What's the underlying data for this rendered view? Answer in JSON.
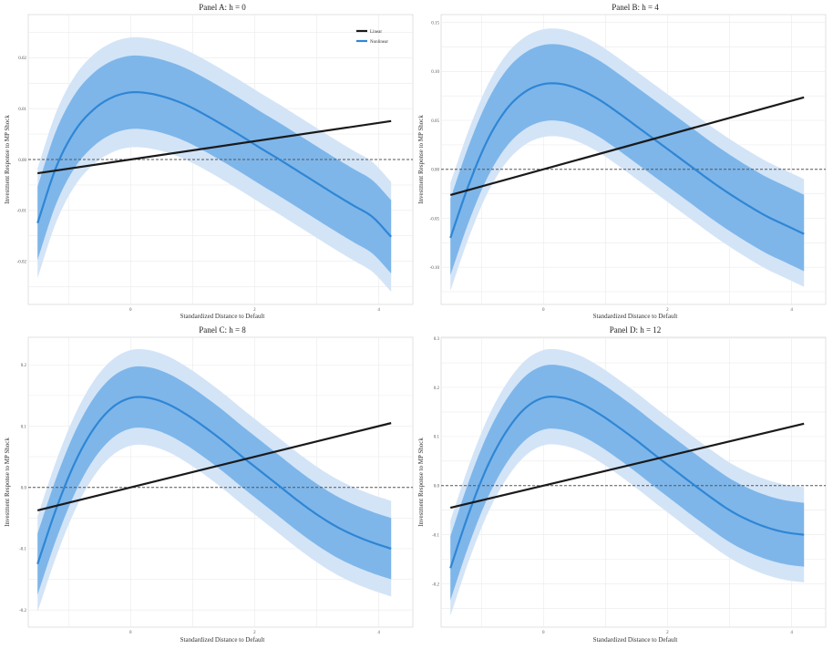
{
  "colors": {
    "outer_band": "#d3e4f7",
    "inner_band": "#7eb6ea",
    "nonlinear_line": "#2f86d4",
    "linear_line": "#1a1a1a",
    "zero_line": "#555555",
    "grid": "#ebebeb",
    "panel_border": "#d9d9d9"
  },
  "legend": {
    "items": [
      {
        "label": "Linear",
        "color": "#1a1a1a"
      },
      {
        "label": "Nonlinear",
        "color": "#2f86d4"
      }
    ],
    "placement": "top-right of Panel A"
  },
  "chart_data": [
    {
      "type": "line",
      "title": "Panel A: h = 0",
      "xlabel": "Standardized Distance to Default",
      "ylabel": "Investment Response to MP Shock",
      "xlim": [
        -1.65,
        4.55
      ],
      "ylim": [
        -0.0285,
        0.0285
      ],
      "xticks": [
        0,
        2,
        4
      ],
      "xtick_labels": [
        "0",
        "2",
        "4"
      ],
      "yticks": [
        -0.02,
        -0.01,
        0.0,
        0.01,
        0.02
      ],
      "ytick_labels": [
        "-0.02",
        "-0.01",
        "0.00",
        "0.01",
        "0.02"
      ],
      "x_range": [
        -1.5,
        4.2
      ],
      "linear": {
        "name": "Linear",
        "intercept": 0.0,
        "slope": 0.0018
      },
      "nonlinear": {
        "name": "Nonlinear",
        "x": [
          -1.5,
          -1.2,
          -0.9,
          -0.6,
          -0.3,
          0.0,
          0.3,
          0.6,
          0.9,
          1.2,
          1.5,
          1.8,
          2.1,
          2.4,
          2.7,
          3.0,
          3.3,
          3.6,
          3.9,
          4.2
        ],
        "y": [
          -0.0125,
          -0.0015,
          0.0056,
          0.0098,
          0.0122,
          0.0132,
          0.013,
          0.0121,
          0.0107,
          0.0088,
          0.0067,
          0.0045,
          0.0022,
          0.0,
          -0.0023,
          -0.0046,
          -0.0069,
          -0.0091,
          -0.0113,
          -0.0152
        ]
      },
      "band_inner": {
        "upper_offset": 0.0072,
        "lower_offset": 0.0072
      },
      "band_outer": {
        "upper_offset": 0.0108,
        "lower_offset": 0.0108
      },
      "zero_line": true,
      "grid": true
    },
    {
      "type": "line",
      "title": "Panel B: h = 4",
      "xlabel": "Standardized Distance to Default",
      "ylabel": "Investment Response to MP Shock",
      "xlim": [
        -1.65,
        4.55
      ],
      "ylim": [
        -0.138,
        0.158
      ],
      "xticks": [
        0,
        2,
        4
      ],
      "xtick_labels": [
        "0",
        "2",
        "4"
      ],
      "yticks": [
        -0.1,
        -0.05,
        0.0,
        0.05,
        0.1,
        0.15
      ],
      "ytick_labels": [
        "-0.10",
        "-0.05",
        "0.00",
        "0.05",
        "0.10",
        "0.15"
      ],
      "x_range": [
        -1.5,
        4.2
      ],
      "linear": {
        "name": "Linear",
        "intercept": 0.0,
        "slope": 0.0175
      },
      "nonlinear": {
        "name": "Nonlinear",
        "x": [
          -1.5,
          -1.2,
          -0.9,
          -0.6,
          -0.3,
          0.0,
          0.3,
          0.6,
          0.9,
          1.2,
          1.5,
          1.8,
          2.1,
          2.4,
          2.7,
          3.0,
          3.3,
          3.6,
          3.9,
          4.2
        ],
        "y": [
          -0.07,
          -0.015,
          0.03,
          0.061,
          0.079,
          0.087,
          0.087,
          0.081,
          0.071,
          0.058,
          0.044,
          0.03,
          0.016,
          0.002,
          -0.012,
          -0.025,
          -0.037,
          -0.048,
          -0.057,
          -0.066
        ]
      },
      "band_inner": {
        "upper_offset": 0.04,
        "lower_offset": 0.038
      },
      "band_outer": {
        "upper_offset": 0.056,
        "lower_offset": 0.054
      },
      "zero_line": true,
      "grid": true
    },
    {
      "type": "line",
      "title": "Panel C: h = 8",
      "xlabel": "Standardized Distance to Default",
      "ylabel": "Investment Response to MP Shock",
      "xlim": [
        -1.65,
        4.55
      ],
      "ylim": [
        -0.228,
        0.245
      ],
      "xticks": [
        0,
        2,
        4
      ],
      "xtick_labels": [
        "0",
        "2",
        "4"
      ],
      "yticks": [
        -0.2,
        -0.1,
        0.0,
        0.1,
        0.2
      ],
      "ytick_labels": [
        "-0.2",
        "-0.1",
        "0.0",
        "0.1",
        "0.2"
      ],
      "x_range": [
        -1.5,
        4.2
      ],
      "linear": {
        "name": "Linear",
        "intercept": 0.0,
        "slope": 0.025
      },
      "nonlinear": {
        "name": "Nonlinear",
        "x": [
          -1.5,
          -1.2,
          -0.9,
          -0.6,
          -0.3,
          0.0,
          0.3,
          0.6,
          0.9,
          1.2,
          1.5,
          1.8,
          2.1,
          2.4,
          2.7,
          3.0,
          3.3,
          3.6,
          3.9,
          4.2
        ],
        "y": [
          -0.125,
          -0.035,
          0.04,
          0.095,
          0.13,
          0.146,
          0.146,
          0.136,
          0.119,
          0.098,
          0.075,
          0.05,
          0.026,
          0.002,
          -0.022,
          -0.044,
          -0.063,
          -0.078,
          -0.09,
          -0.1
        ]
      },
      "band_inner": {
        "upper_offset": 0.05,
        "lower_offset": 0.05
      },
      "band_outer": {
        "upper_offset": 0.078,
        "lower_offset": 0.078
      },
      "zero_line": true,
      "grid": true
    },
    {
      "type": "line",
      "title": "Panel D: h = 12",
      "xlabel": "Standardized Distance to Default",
      "ylabel": "Investment Response to MP Shock",
      "xlim": [
        -1.65,
        4.55
      ],
      "ylim": [
        -0.288,
        0.302
      ],
      "xticks": [
        0,
        2,
        4
      ],
      "xtick_labels": [
        "0",
        "2",
        "4"
      ],
      "yticks": [
        -0.2,
        -0.1,
        0.0,
        0.1,
        0.2,
        0.3
      ],
      "ytick_labels": [
        "-0.2",
        "-0.1",
        "0.0",
        "0.1",
        "0.2",
        "0.3"
      ],
      "x_range": [
        -1.5,
        4.2
      ],
      "linear": {
        "name": "Linear",
        "intercept": 0.0,
        "slope": 0.03
      },
      "nonlinear": {
        "name": "Nonlinear",
        "x": [
          -1.5,
          -1.2,
          -0.9,
          -0.6,
          -0.3,
          0.0,
          0.3,
          0.6,
          0.9,
          1.2,
          1.5,
          1.8,
          2.1,
          2.4,
          2.7,
          3.0,
          3.3,
          3.6,
          3.9,
          4.2
        ],
        "y": [
          -0.168,
          -0.055,
          0.04,
          0.11,
          0.157,
          0.179,
          0.179,
          0.167,
          0.146,
          0.12,
          0.092,
          0.062,
          0.033,
          0.004,
          -0.024,
          -0.05,
          -0.07,
          -0.085,
          -0.095,
          -0.1
        ]
      },
      "band_inner": {
        "upper_offset": 0.065,
        "lower_offset": 0.065
      },
      "band_outer": {
        "upper_offset": 0.097,
        "lower_offset": 0.097
      },
      "zero_line": true,
      "grid": true
    }
  ]
}
